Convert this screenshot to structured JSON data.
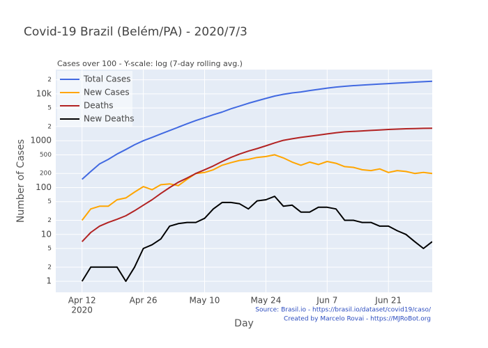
{
  "chart_data": {
    "type": "line",
    "title": "Covid-19 Brazil (Belém/PA) - 2020/7/3",
    "subtitle": "Cases over 100 - Y-scale: log (7-day rolling avg.)",
    "x_label": "Day",
    "y_label": "Number of Cases",
    "annotations": [
      "Source: Brasil.io - https://brasil.io/dataset/covid19/caso/",
      "Created by Marcelo Rovai - https://MJRoBot.org"
    ],
    "log_y": true,
    "grid": true,
    "legend_position": "top-left",
    "x": [
      "2020-04-12",
      "2020-04-14",
      "2020-04-16",
      "2020-04-18",
      "2020-04-20",
      "2020-04-22",
      "2020-04-24",
      "2020-04-26",
      "2020-04-28",
      "2020-04-30",
      "2020-05-02",
      "2020-05-04",
      "2020-05-06",
      "2020-05-08",
      "2020-05-10",
      "2020-05-12",
      "2020-05-14",
      "2020-05-16",
      "2020-05-18",
      "2020-05-20",
      "2020-05-22",
      "2020-05-24",
      "2020-05-26",
      "2020-05-28",
      "2020-05-30",
      "2020-06-01",
      "2020-06-03",
      "2020-06-05",
      "2020-06-07",
      "2020-06-09",
      "2020-06-11",
      "2020-06-13",
      "2020-06-15",
      "2020-06-17",
      "2020-06-19",
      "2020-06-21",
      "2020-06-23",
      "2020-06-25",
      "2020-06-27",
      "2020-06-29",
      "2020-07-01"
    ],
    "xlim": [
      "2020-04-06",
      "2020-07-01"
    ],
    "xticks": [
      {
        "value": "2020-04-12",
        "label": "Apr 12"
      },
      {
        "value": "2020-04-26",
        "label": "Apr 26"
      },
      {
        "value": "2020-05-10",
        "label": "May 10"
      },
      {
        "value": "2020-05-24",
        "label": "May 24"
      },
      {
        "value": "2020-06-07",
        "label": "Jun 7"
      },
      {
        "value": "2020-06-21",
        "label": "Jun 21"
      }
    ],
    "x_year_label": "2020",
    "ylim": [
      0.58,
      33000
    ],
    "yticks": [
      1,
      2,
      5,
      10,
      {
        "value": 20,
        "label": "2"
      },
      {
        "value": 50,
        "label": "5"
      },
      100,
      200,
      500,
      1000,
      {
        "value": 2000,
        "label": "2"
      },
      {
        "value": 5000,
        "label": "5"
      },
      {
        "value": 10000,
        "label": "10k"
      },
      {
        "value": 20000,
        "label": "2"
      }
    ],
    "series": [
      {
        "name": "Total Cases",
        "color": "#4169e1",
        "values": [
          150,
          220,
          320,
          400,
          520,
          650,
          820,
          1000,
          1180,
          1400,
          1650,
          1950,
          2300,
          2700,
          3100,
          3600,
          4100,
          4800,
          5500,
          6300,
          7100,
          8000,
          9000,
          9800,
          10500,
          11000,
          11800,
          12500,
          13300,
          14000,
          14500,
          15000,
          15400,
          15800,
          16200,
          16600,
          17000,
          17400,
          17800,
          18200,
          18600
        ]
      },
      {
        "name": "New Cases",
        "color": "#ffa500",
        "values": [
          20,
          35,
          40,
          40,
          55,
          60,
          80,
          105,
          90,
          115,
          120,
          110,
          150,
          200,
          210,
          240,
          300,
          340,
          380,
          400,
          440,
          460,
          500,
          430,
          350,
          300,
          350,
          310,
          360,
          330,
          280,
          270,
          240,
          230,
          250,
          210,
          230,
          220,
          200,
          210,
          200
        ]
      },
      {
        "name": "Deaths",
        "color": "#b22222",
        "values": [
          7,
          11,
          15,
          18,
          21,
          25,
          32,
          42,
          55,
          75,
          100,
          130,
          160,
          200,
          240,
          290,
          360,
          440,
          520,
          600,
          680,
          780,
          900,
          1020,
          1100,
          1180,
          1250,
          1320,
          1400,
          1480,
          1550,
          1580,
          1620,
          1660,
          1700,
          1740,
          1770,
          1800,
          1820,
          1840,
          1850
        ]
      },
      {
        "name": "New Deaths",
        "color": "#000000",
        "values": [
          1,
          2,
          2,
          2,
          2,
          1,
          2,
          5,
          6,
          8,
          15,
          17,
          18,
          18,
          22,
          35,
          48,
          48,
          45,
          35,
          52,
          55,
          65,
          40,
          42,
          30,
          30,
          38,
          38,
          35,
          20,
          20,
          18,
          18,
          15,
          15,
          12,
          10,
          7,
          5,
          7
        ]
      }
    ]
  }
}
